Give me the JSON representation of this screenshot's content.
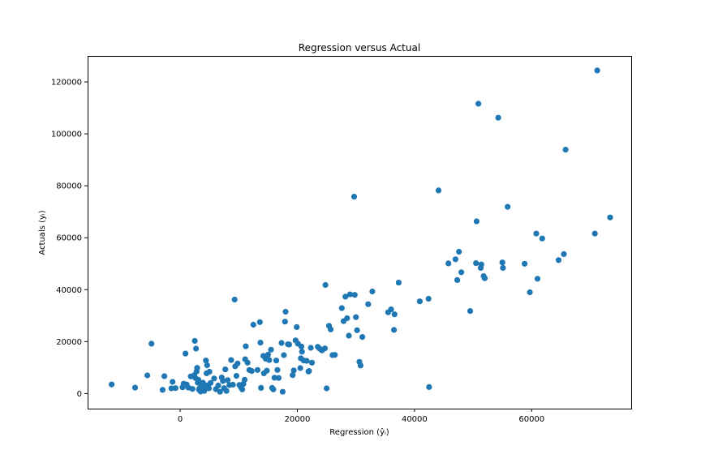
{
  "chart_data": {
    "type": "scatter",
    "title": "Regression versus Actual",
    "xlabel": "Regression (ŷᵢ)",
    "ylabel": "Actuals (yᵢ)",
    "xlim": [
      -15800,
      77000
    ],
    "ylim": [
      -5800,
      130000
    ],
    "xticks": [
      0,
      20000,
      40000,
      60000
    ],
    "yticks": [
      0,
      20000,
      40000,
      60000,
      80000,
      100000,
      120000
    ],
    "xtick_labels": [
      "0",
      "20000",
      "40000",
      "60000"
    ],
    "ytick_labels": [
      "0",
      "20000",
      "40000",
      "60000",
      "80000",
      "100000",
      "120000"
    ],
    "grid": false,
    "marker_color": "#1f77b4",
    "series": [
      {
        "points": [
          [
            -11700,
            3500
          ],
          [
            -7700,
            2300
          ],
          [
            -5600,
            7000
          ],
          [
            -4900,
            19200
          ],
          [
            -3000,
            1400
          ],
          [
            -2700,
            6700
          ],
          [
            -1500,
            2000
          ],
          [
            -1300,
            4500
          ],
          [
            -800,
            2100
          ],
          [
            400,
            2400
          ],
          [
            600,
            3800
          ],
          [
            900,
            15400
          ],
          [
            1100,
            3500
          ],
          [
            1400,
            2300
          ],
          [
            1800,
            6600
          ],
          [
            2100,
            1800
          ],
          [
            2400,
            7100
          ],
          [
            2500,
            20300
          ],
          [
            2600,
            6000
          ],
          [
            2700,
            17300
          ],
          [
            2800,
            8500
          ],
          [
            2900,
            9900
          ],
          [
            3000,
            4200
          ],
          [
            3100,
            5300
          ],
          [
            3200,
            1500
          ],
          [
            3300,
            2000
          ],
          [
            3500,
            800
          ],
          [
            3600,
            3500
          ],
          [
            3800,
            2600
          ],
          [
            3900,
            4200
          ],
          [
            4100,
            1000
          ],
          [
            4200,
            2800
          ],
          [
            4400,
            12700
          ],
          [
            4500,
            7800
          ],
          [
            4600,
            10900
          ],
          [
            4700,
            3200
          ],
          [
            4900,
            2000
          ],
          [
            5000,
            8400
          ],
          [
            5200,
            4100
          ],
          [
            5800,
            5800
          ],
          [
            6100,
            1700
          ],
          [
            6500,
            3100
          ],
          [
            6800,
            700
          ],
          [
            7100,
            6200
          ],
          [
            7300,
            4800
          ],
          [
            7500,
            2100
          ],
          [
            7700,
            9300
          ],
          [
            7900,
            1000
          ],
          [
            8100,
            5200
          ],
          [
            8400,
            3300
          ],
          [
            8700,
            12900
          ],
          [
            9000,
            3400
          ],
          [
            9300,
            36200
          ],
          [
            9400,
            10500
          ],
          [
            9600,
            6800
          ],
          [
            9800,
            11600
          ],
          [
            10100,
            3300
          ],
          [
            10400,
            2300
          ],
          [
            10600,
            1600
          ],
          [
            10800,
            3700
          ],
          [
            11000,
            5300
          ],
          [
            11100,
            13200
          ],
          [
            11200,
            18200
          ],
          [
            11500,
            11900
          ],
          [
            11800,
            9100
          ],
          [
            12200,
            8700
          ],
          [
            12500,
            26500
          ],
          [
            13200,
            9100
          ],
          [
            13600,
            27500
          ],
          [
            13700,
            19600
          ],
          [
            13800,
            2200
          ],
          [
            14200,
            14500
          ],
          [
            14300,
            7800
          ],
          [
            14600,
            13400
          ],
          [
            14800,
            8800
          ],
          [
            15000,
            15000
          ],
          [
            15200,
            12900
          ],
          [
            15500,
            16900
          ],
          [
            15700,
            2200
          ],
          [
            15900,
            1600
          ],
          [
            16100,
            6100
          ],
          [
            16400,
            12700
          ],
          [
            16600,
            9100
          ],
          [
            16800,
            6000
          ],
          [
            17300,
            19500
          ],
          [
            17500,
            700
          ],
          [
            17700,
            14800
          ],
          [
            17900,
            27700
          ],
          [
            18000,
            31500
          ],
          [
            18400,
            19000
          ],
          [
            18600,
            18900
          ],
          [
            19200,
            7100
          ],
          [
            19400,
            8900
          ],
          [
            19700,
            20500
          ],
          [
            19900,
            25600
          ],
          [
            20100,
            19200
          ],
          [
            20500,
            9800
          ],
          [
            20600,
            13600
          ],
          [
            20700,
            18100
          ],
          [
            20800,
            16100
          ],
          [
            21100,
            12700
          ],
          [
            21600,
            12600
          ],
          [
            21900,
            8500
          ],
          [
            22000,
            8700
          ],
          [
            22300,
            17600
          ],
          [
            22500,
            11900
          ],
          [
            23500,
            18000
          ],
          [
            23800,
            17300
          ],
          [
            24200,
            16600
          ],
          [
            24700,
            17400
          ],
          [
            24800,
            41800
          ],
          [
            25000,
            2000
          ],
          [
            25400,
            26100
          ],
          [
            25700,
            24700
          ],
          [
            26000,
            14800
          ],
          [
            26400,
            14900
          ],
          [
            27600,
            32900
          ],
          [
            27900,
            27900
          ],
          [
            28200,
            37300
          ],
          [
            28500,
            29000
          ],
          [
            28800,
            22300
          ],
          [
            29000,
            38200
          ],
          [
            29800,
            38000
          ],
          [
            30000,
            29400
          ],
          [
            30200,
            24400
          ],
          [
            30600,
            12200
          ],
          [
            30800,
            10800
          ],
          [
            31100,
            21800
          ],
          [
            32100,
            34400
          ],
          [
            32800,
            39300
          ],
          [
            35500,
            31300
          ],
          [
            36000,
            32400
          ],
          [
            36500,
            24500
          ],
          [
            36600,
            30500
          ],
          [
            37300,
            42700
          ],
          [
            29700,
            75800
          ],
          [
            40900,
            35500
          ],
          [
            42400,
            36500
          ],
          [
            42500,
            2500
          ],
          [
            44100,
            78200
          ],
          [
            45800,
            50100
          ],
          [
            47000,
            51700
          ],
          [
            47300,
            43700
          ],
          [
            47600,
            54600
          ],
          [
            48000,
            46700
          ],
          [
            49500,
            31800
          ],
          [
            50500,
            50200
          ],
          [
            50600,
            66300
          ],
          [
            50900,
            111600
          ],
          [
            51300,
            48400
          ],
          [
            51400,
            49700
          ],
          [
            51800,
            45200
          ],
          [
            52000,
            44400
          ],
          [
            54300,
            106200
          ],
          [
            55000,
            50500
          ],
          [
            55100,
            48400
          ],
          [
            55900,
            71900
          ],
          [
            58800,
            50000
          ],
          [
            59700,
            39000
          ],
          [
            60800,
            61600
          ],
          [
            61000,
            44200
          ],
          [
            61800,
            59700
          ],
          [
            64600,
            51400
          ],
          [
            65500,
            53700
          ],
          [
            65800,
            93900
          ],
          [
            70800,
            61600
          ],
          [
            71200,
            124400
          ],
          [
            73400,
            67800
          ]
        ]
      }
    ]
  }
}
